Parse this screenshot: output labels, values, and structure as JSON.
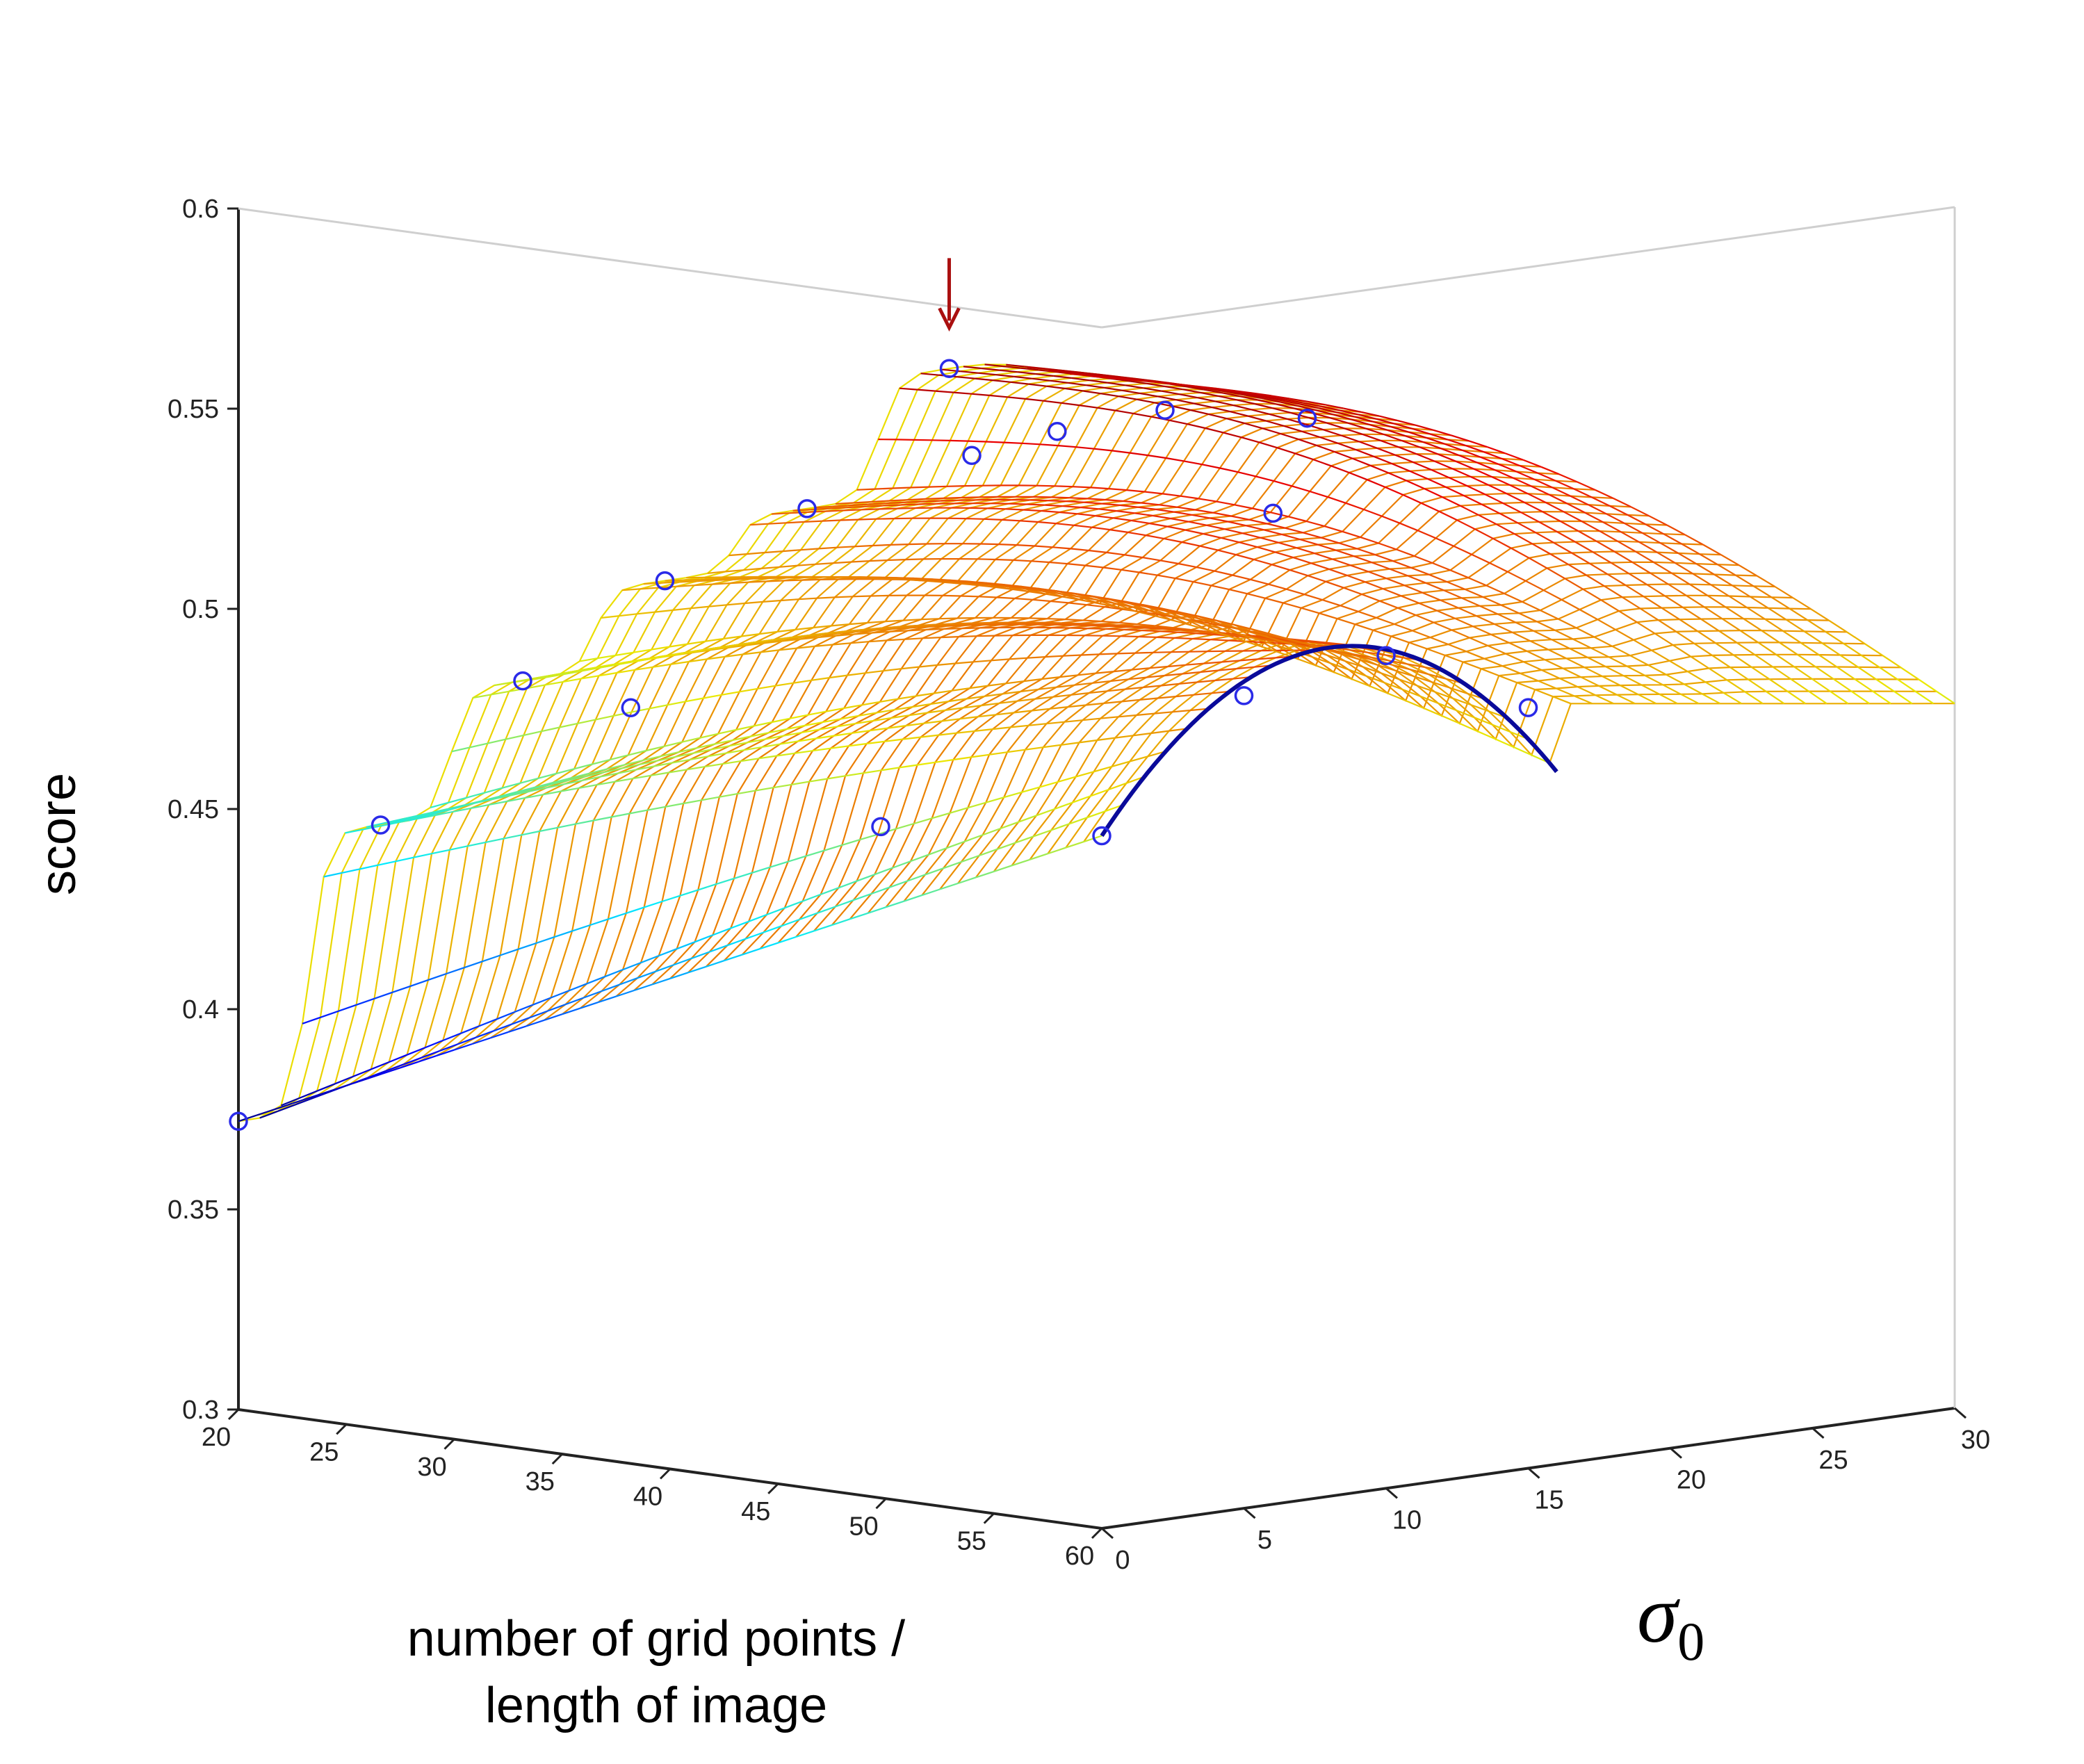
{
  "chart_data": {
    "type": "surface",
    "title": "",
    "zlabel": "score",
    "xlabel": "number of grid points / length of image",
    "xlabel_lines": [
      "number of grid points /",
      "length of image"
    ],
    "ylabel_symbol": "σ",
    "ylabel_subscript": "0",
    "xlim": [
      20,
      60
    ],
    "ylim": [
      0,
      30
    ],
    "zlim": [
      0.3,
      0.6
    ],
    "x_ticks": [
      "20",
      "25",
      "30",
      "35",
      "40",
      "45",
      "50",
      "55",
      "60"
    ],
    "y_ticks": [
      "0",
      "5",
      "10",
      "15",
      "20",
      "25",
      "30"
    ],
    "z_ticks": [
      "0.3",
      "0.35",
      "0.4",
      "0.45",
      "0.5",
      "0.55",
      "0.6"
    ],
    "colormap": "jet",
    "mesh_color_low": "#3c3cff",
    "mesh_color_high": "#b40000",
    "marker_color": "#2a2ae8",
    "curve_color": "#0a0a9a",
    "arrow_color": "#aa1010",
    "points": [
      {
        "x": 20,
        "y": 0,
        "z": 0.372
      },
      {
        "x": 20,
        "y": 5,
        "z": 0.441
      },
      {
        "x": 20,
        "y": 10,
        "z": 0.472
      },
      {
        "x": 25,
        "y": 10,
        "z": 0.469
      },
      {
        "x": 20,
        "y": 15,
        "z": 0.492
      },
      {
        "x": 30,
        "y": 15,
        "z": 0.438
      },
      {
        "x": 20,
        "y": 20,
        "z": 0.505
      },
      {
        "x": 25,
        "y": 22,
        "z": 0.52
      },
      {
        "x": 20,
        "y": 25,
        "z": 0.535
      },
      {
        "x": 25,
        "y": 25,
        "z": 0.523
      },
      {
        "x": 30,
        "y": 25,
        "z": 0.532
      },
      {
        "x": 35,
        "y": 25,
        "z": 0.51
      },
      {
        "x": 30,
        "y": 30,
        "z": 0.525
      },
      {
        "x": 60,
        "y": 0,
        "z": 0.473
      },
      {
        "x": 60,
        "y": 5,
        "z": 0.503
      },
      {
        "x": 60,
        "y": 10,
        "z": 0.508
      },
      {
        "x": 60,
        "y": 15,
        "z": 0.49
      }
    ],
    "fitted_curve": {
      "x": 60,
      "y_range": [
        0,
        16
      ],
      "peak_y": 8,
      "peak_z": 0.512
    },
    "annotations": [
      {
        "type": "arrow",
        "points_to": {
          "x": 20,
          "y": 25,
          "z": 0.54
        }
      }
    ]
  }
}
